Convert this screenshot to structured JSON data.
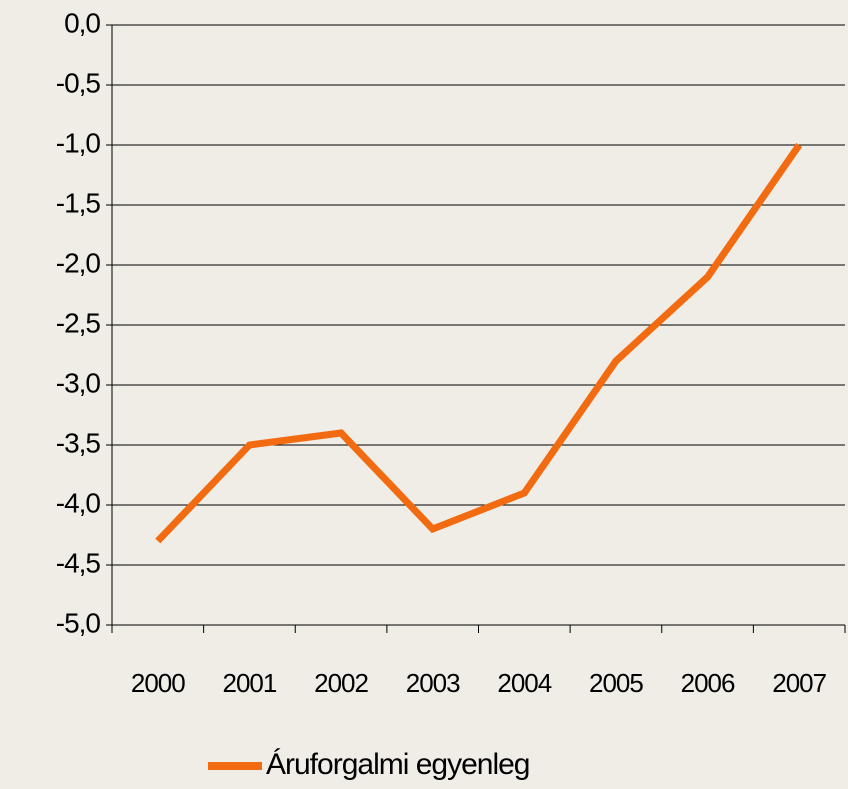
{
  "chart_data": {
    "type": "line",
    "categories": [
      "2000",
      "2001",
      "2002",
      "2003",
      "2004",
      "2005",
      "2006",
      "2007"
    ],
    "series": [
      {
        "name": "Áruforgalmi egyenleg",
        "color": "#f26b10",
        "values": [
          -4.3,
          -3.5,
          -3.4,
          -4.2,
          -3.9,
          -2.8,
          -2.1,
          -1.0
        ]
      }
    ],
    "ylim": [
      -5,
      0
    ],
    "yticks": [
      {
        "value": 0,
        "label": "0,0"
      },
      {
        "value": -0.5,
        "label": "-0,5"
      },
      {
        "value": -1,
        "label": "-1,0"
      },
      {
        "value": -1.5,
        "label": "-1,5"
      },
      {
        "value": -2,
        "label": "-2,0"
      },
      {
        "value": -2.5,
        "label": "-2,5"
      },
      {
        "value": -3,
        "label": "-3,0"
      },
      {
        "value": -3.5,
        "label": "-3,5"
      },
      {
        "value": -4,
        "label": "-4,0"
      },
      {
        "value": -4.5,
        "label": "-4,5"
      },
      {
        "value": -5,
        "label": "-5,0"
      }
    ],
    "grid": true,
    "legend": "bottom"
  }
}
